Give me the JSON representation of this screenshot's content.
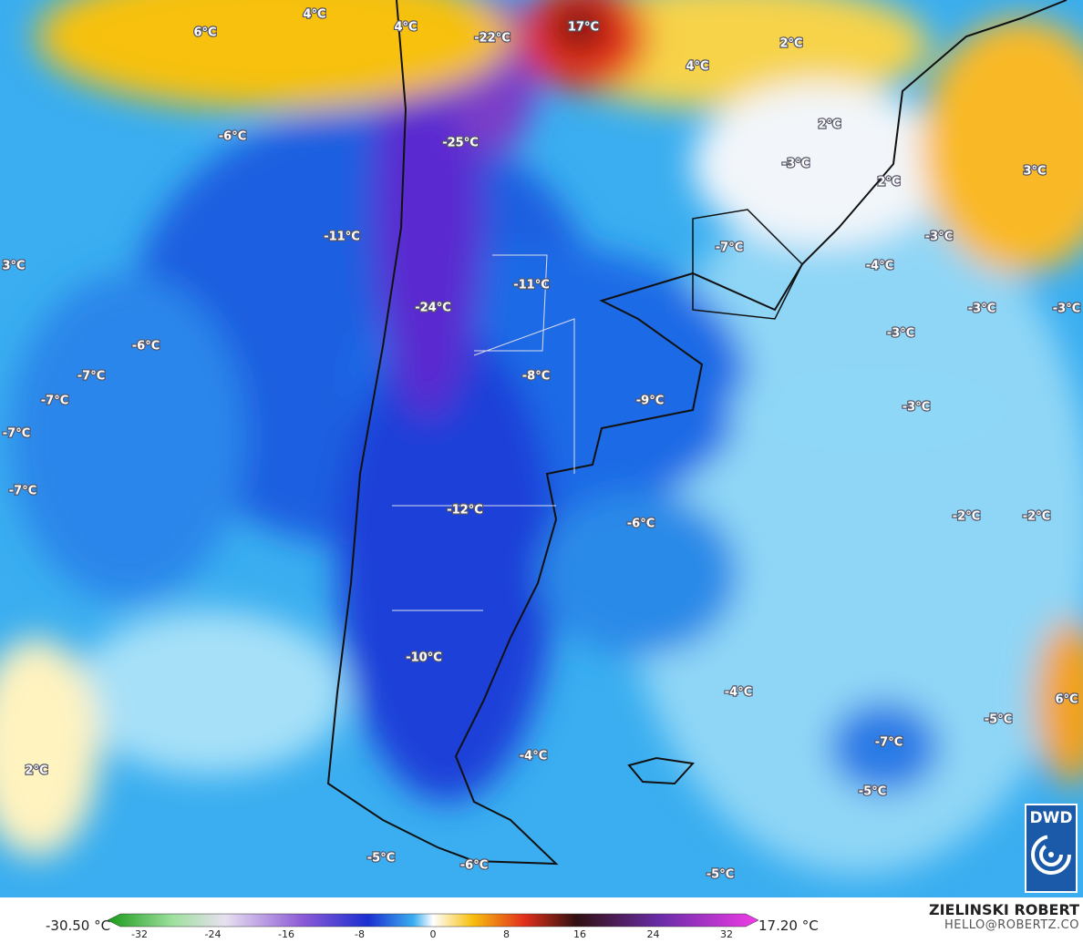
{
  "labels": [
    "4°C",
    "6°C",
    "4°C",
    "-22°C",
    "17°C",
    "2°C",
    "4°C",
    "-6°C",
    "-25°C",
    "2°C",
    "-3°C",
    "3°C",
    "2°C",
    "-11°C",
    "-7°C",
    "-3°C",
    "3°C",
    "-4°C",
    "-11°C",
    "-24°C",
    "-3°C",
    "-3°C",
    "-3°C",
    "-6°C",
    "-7°C",
    "-8°C",
    "-7°C",
    "-9°C",
    "-3°C",
    "-7°C",
    "-7°C",
    "-12°C",
    "-6°C",
    "-2°C",
    "-2°C",
    "-10°C",
    "-4°C",
    "6°C",
    "-5°C",
    "-7°C",
    "-4°C",
    "2°C",
    "-5°C",
    "-5°C",
    "-6°C",
    "-5°C"
  ],
  "colorbar": {
    "min_label": "-30.50 °C",
    "max_label": "17.20 °C",
    "ticks": [
      -32,
      -24,
      -16,
      -8,
      0,
      8,
      16,
      24,
      32
    ]
  },
  "credit": {
    "name": "ZIELINSKI ROBERT",
    "email": "HELLO@ROBERTZ.CO"
  },
  "logo": "DWD"
}
